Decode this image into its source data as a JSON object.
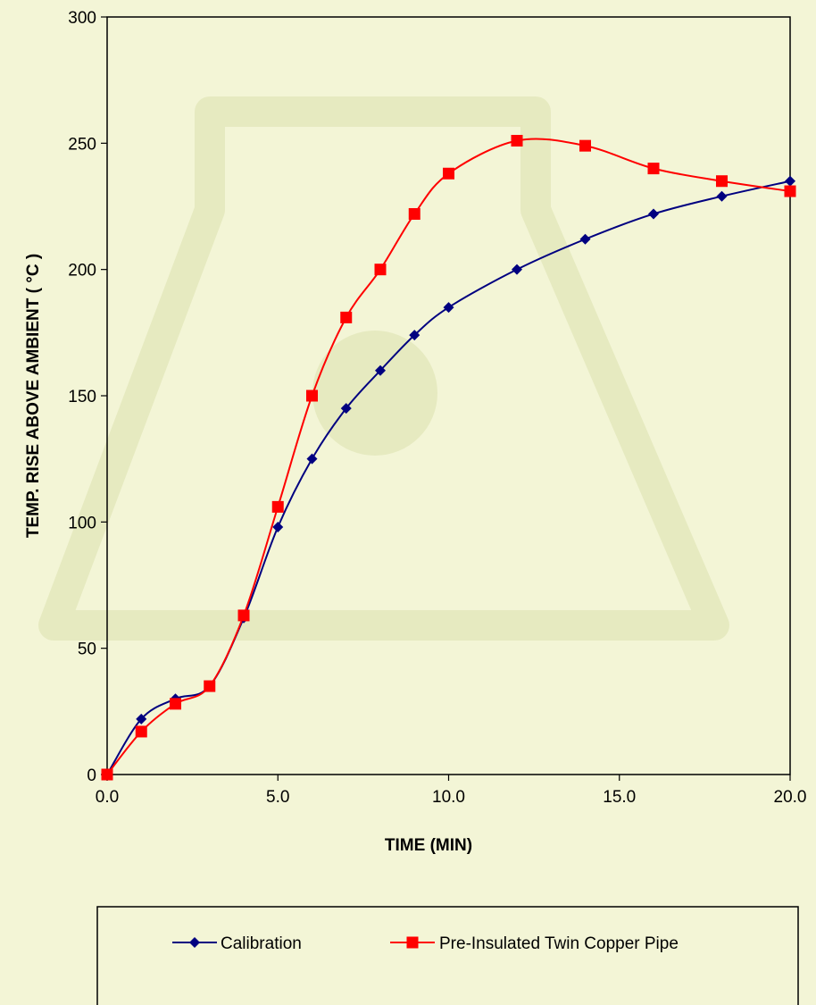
{
  "chart_data": {
    "type": "line",
    "title": "",
    "xlabel": "TIME (MIN)",
    "ylabel": "TEMP. RISE ABOVE AMBIENT ( °C )",
    "xlim": [
      0,
      20
    ],
    "ylim": [
      0,
      300
    ],
    "x_ticks": [
      "0.0",
      "5.0",
      "10.0",
      "15.0",
      "20.0"
    ],
    "y_ticks": [
      "0",
      "50",
      "100",
      "150",
      "200",
      "250",
      "300"
    ],
    "grid": false,
    "legend_position": "bottom",
    "series": [
      {
        "name": "Calibration",
        "color": "#000080",
        "marker": "diamond",
        "x": [
          0,
          1,
          2,
          3,
          4,
          5,
          6,
          7,
          8,
          9,
          10,
          12,
          14,
          16,
          18,
          20
        ],
        "y": [
          0,
          22,
          30,
          35,
          62,
          98,
          125,
          145,
          160,
          174,
          185,
          200,
          212,
          222,
          229,
          235
        ]
      },
      {
        "name": "Pre-Insulated Twin Copper Pipe",
        "color": "#ff0000",
        "marker": "square",
        "x": [
          0,
          1,
          2,
          3,
          4,
          5,
          6,
          7,
          8,
          9,
          10,
          12,
          14,
          16,
          18,
          20
        ],
        "y": [
          0,
          17,
          28,
          35,
          63,
          106,
          150,
          181,
          200,
          222,
          238,
          251,
          249,
          240,
          235,
          231
        ]
      }
    ]
  }
}
